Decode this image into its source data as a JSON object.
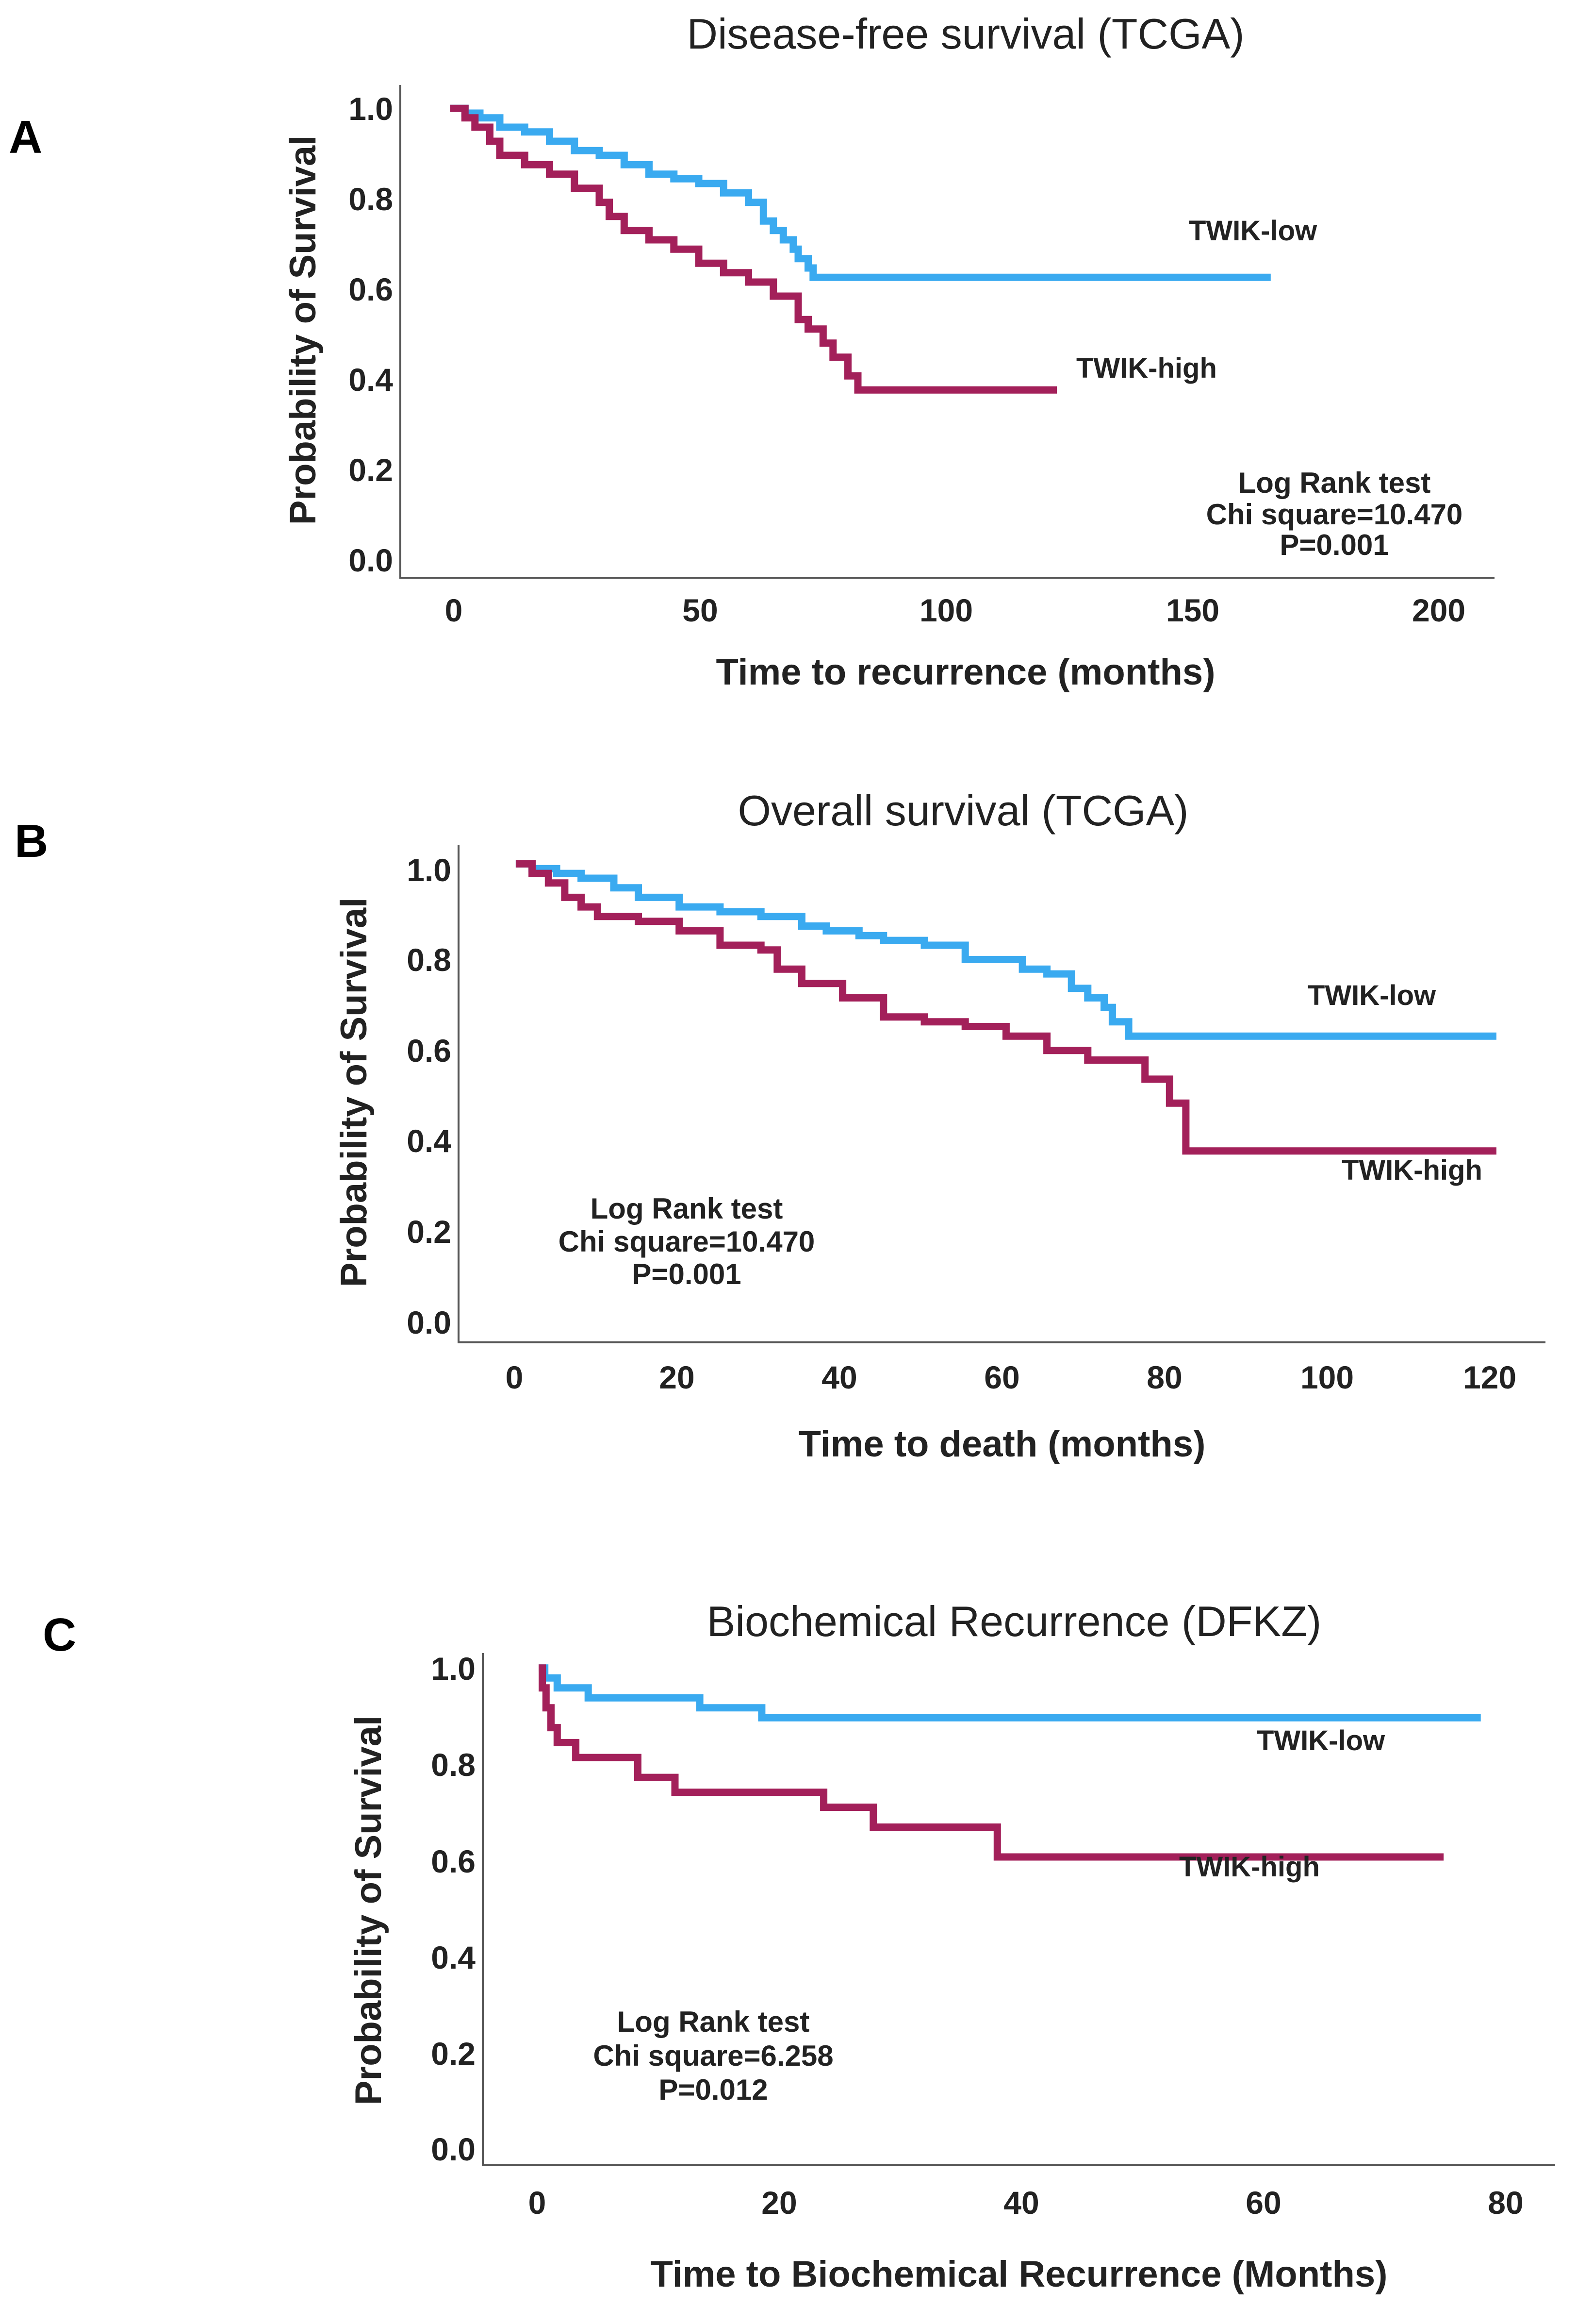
{
  "figure": {
    "panels": [
      {
        "id": "A",
        "label": "A"
      },
      {
        "id": "B",
        "label": "B"
      },
      {
        "id": "C",
        "label": "C"
      }
    ]
  },
  "chart_data": [
    {
      "type": "line",
      "panel": "A",
      "title": "Disease-free survival (TCGA)",
      "xlabel": "Time to recurrence (months)",
      "ylabel": "Probability of Survival",
      "xlim": [
        -10,
        210
      ],
      "ylim": [
        0,
        1.05
      ],
      "xticks": [
        0,
        50,
        100,
        150,
        200
      ],
      "xtick_labels": [
        "0",
        "50",
        "100",
        "150",
        "200"
      ],
      "yticks": [
        0,
        0.2,
        0.4,
        0.6,
        0.8,
        1.0
      ],
      "ytick_labels": [
        "0.0",
        "0.2",
        "0.4",
        "0.6",
        "0.8",
        "1.0"
      ],
      "series": [
        {
          "name": "TWIK-low",
          "color": "#3aaaf0",
          "x": [
            0,
            3,
            6,
            10,
            15,
            20,
            25,
            30,
            35,
            40,
            45,
            50,
            55,
            60,
            63,
            65,
            67,
            69,
            70,
            72,
            73,
            75,
            165
          ],
          "y": [
            1.0,
            0.99,
            0.98,
            0.96,
            0.95,
            0.93,
            0.91,
            0.9,
            0.88,
            0.86,
            0.85,
            0.84,
            0.82,
            0.8,
            0.76,
            0.74,
            0.72,
            0.7,
            0.68,
            0.66,
            0.64,
            0.64,
            0.64
          ]
        },
        {
          "name": "TWIK-high",
          "color": "#a3205a",
          "x": [
            0,
            3,
            5,
            8,
            10,
            15,
            20,
            25,
            30,
            32,
            35,
            40,
            45,
            50,
            55,
            60,
            65,
            70,
            72,
            75,
            77,
            80,
            82,
            122
          ],
          "y": [
            1.0,
            0.98,
            0.96,
            0.93,
            0.9,
            0.88,
            0.86,
            0.83,
            0.8,
            0.77,
            0.74,
            0.72,
            0.7,
            0.67,
            0.65,
            0.63,
            0.6,
            0.55,
            0.53,
            0.5,
            0.47,
            0.43,
            0.4,
            0.4
          ]
        }
      ],
      "series_labels": [
        "TWIK-low",
        "TWIK-high"
      ],
      "stats": {
        "test": "Log Rank test",
        "chi": "Chi square=10.470",
        "p": "P=0.001"
      }
    },
    {
      "type": "line",
      "panel": "B",
      "title": "Overall survival (TCGA)",
      "xlabel": "Time to death (months)",
      "ylabel": "Probability of Survival",
      "xlim": [
        -7,
        126
      ],
      "ylim": [
        0,
        1.04
      ],
      "xticks": [
        0,
        20,
        40,
        60,
        80,
        100,
        120
      ],
      "xtick_labels": [
        "0",
        "20",
        "40",
        "60",
        "80",
        "100",
        "120"
      ],
      "yticks": [
        0,
        0.2,
        0.4,
        0.6,
        0.8,
        1.0
      ],
      "ytick_labels": [
        "0.0",
        "0.2",
        "0.4",
        "0.6",
        "0.8",
        "1.0"
      ],
      "series": [
        {
          "name": "TWIK-low",
          "color": "#3aaaf0",
          "x": [
            0,
            2,
            5,
            8,
            12,
            15,
            20,
            25,
            30,
            35,
            38,
            42,
            45,
            50,
            55,
            58,
            62,
            65,
            68,
            70,
            72,
            73,
            75,
            120
          ],
          "y": [
            1.0,
            0.99,
            0.98,
            0.97,
            0.95,
            0.93,
            0.91,
            0.9,
            0.89,
            0.87,
            0.86,
            0.85,
            0.84,
            0.83,
            0.8,
            0.8,
            0.78,
            0.77,
            0.74,
            0.72,
            0.7,
            0.67,
            0.64,
            0.64
          ]
        },
        {
          "name": "TWIK-high",
          "color": "#a3205a",
          "x": [
            0,
            2,
            4,
            6,
            8,
            10,
            15,
            20,
            25,
            30,
            32,
            35,
            40,
            45,
            50,
            55,
            60,
            65,
            70,
            77,
            80,
            82,
            120
          ],
          "y": [
            1.0,
            0.98,
            0.96,
            0.93,
            0.91,
            0.89,
            0.88,
            0.86,
            0.83,
            0.82,
            0.78,
            0.75,
            0.72,
            0.68,
            0.67,
            0.66,
            0.64,
            0.61,
            0.59,
            0.55,
            0.5,
            0.4,
            0.4
          ]
        }
      ],
      "series_labels": [
        "TWIK-low",
        "TWIK-high"
      ],
      "stats": {
        "test": "Log Rank test",
        "chi": "Chi square=10.470",
        "p": "P=0.001"
      }
    },
    {
      "type": "line",
      "panel": "C",
      "title": "Biochemical Recurrence (DFKZ)",
      "xlabel": "Time to Biochemical Recurrence (Months)",
      "ylabel": "Probability of Survival",
      "xlim": [
        -4.5,
        82
      ],
      "ylim": [
        0,
        1.03
      ],
      "xticks": [
        0,
        20,
        40,
        60,
        80
      ],
      "xtick_labels": [
        "0",
        "20",
        "40",
        "60",
        "80"
      ],
      "yticks": [
        0,
        0.2,
        0.4,
        0.6,
        0.8,
        1.0
      ],
      "ytick_labels": [
        "0.0",
        "0.2",
        "0.4",
        "0.6",
        "0.8",
        "1.0"
      ],
      "series": [
        {
          "name": "TWIK-low",
          "color": "#3aaaf0",
          "x": [
            0,
            0.5,
            1.5,
            4,
            13,
            18,
            76
          ],
          "y": [
            1.0,
            0.98,
            0.96,
            0.94,
            0.92,
            0.9,
            0.9
          ]
        },
        {
          "name": "TWIK-high",
          "color": "#a3205a",
          "x": [
            0,
            0.3,
            0.6,
            1,
            1.5,
            3,
            8,
            11,
            23,
            27,
            37,
            73
          ],
          "y": [
            1.0,
            0.96,
            0.92,
            0.88,
            0.85,
            0.82,
            0.78,
            0.75,
            0.72,
            0.68,
            0.62,
            0.62
          ]
        }
      ],
      "series_labels": [
        "TWIK-low",
        "TWIK-high"
      ],
      "stats": {
        "test": "Log Rank test",
        "chi": "Chi square=6.258",
        "p": "P=0.012"
      }
    }
  ]
}
